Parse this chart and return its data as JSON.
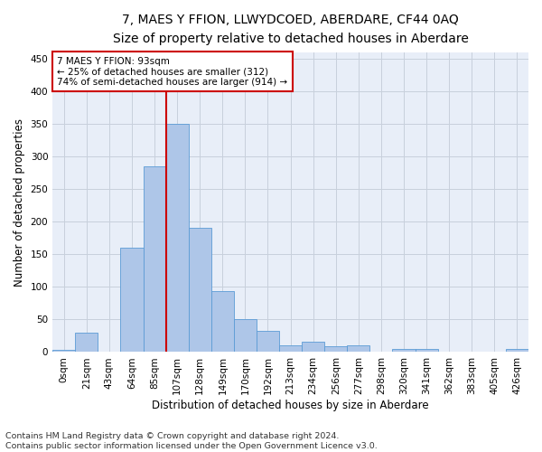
{
  "title": "7, MAES Y FFION, LLWYDCOED, ABERDARE, CF44 0AQ",
  "subtitle": "Size of property relative to detached houses in Aberdare",
  "xlabel": "Distribution of detached houses by size in Aberdare",
  "ylabel": "Number of detached properties",
  "footer_line1": "Contains HM Land Registry data © Crown copyright and database right 2024.",
  "footer_line2": "Contains public sector information licensed under the Open Government Licence v3.0.",
  "bar_labels": [
    "0sqm",
    "21sqm",
    "43sqm",
    "64sqm",
    "85sqm",
    "107sqm",
    "128sqm",
    "149sqm",
    "170sqm",
    "192sqm",
    "213sqm",
    "234sqm",
    "256sqm",
    "277sqm",
    "298sqm",
    "320sqm",
    "341sqm",
    "362sqm",
    "383sqm",
    "405sqm",
    "426sqm"
  ],
  "bar_values": [
    3,
    30,
    0,
    160,
    285,
    350,
    190,
    93,
    50,
    32,
    11,
    16,
    9,
    10,
    0,
    5,
    5,
    0,
    1,
    0,
    5
  ],
  "bar_color": "#aec6e8",
  "bar_edge_color": "#5b9bd5",
  "vline_x_index": 4,
  "vline_color": "#cc0000",
  "annotation_line1": "7 MAES Y FFION: 93sqm",
  "annotation_line2": "← 25% of detached houses are smaller (312)",
  "annotation_line3": "74% of semi-detached houses are larger (914) →",
  "annotation_box_color": "#ffffff",
  "annotation_box_edge": "#cc0000",
  "ylim": [
    0,
    460
  ],
  "yticks": [
    0,
    50,
    100,
    150,
    200,
    250,
    300,
    350,
    400,
    450
  ],
  "background_color": "#ffffff",
  "plot_bg_color": "#e8eef8",
  "grid_color": "#c8d0dc",
  "title_fontsize": 10,
  "subtitle_fontsize": 9,
  "axis_label_fontsize": 8.5,
  "tick_fontsize": 7.5,
  "annotation_fontsize": 7.5,
  "footer_fontsize": 6.8
}
